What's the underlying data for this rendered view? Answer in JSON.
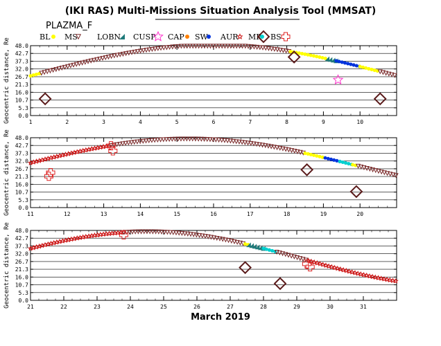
{
  "title": "(IKI RAS) Multi-Missions Situation Analysis Tool (MMSAT)",
  "subtitle": "PLAZMA_F",
  "xlabel": "March 2019",
  "legend": [
    {
      "key": "BL",
      "label": "BL",
      "symbol": "dot",
      "color": "#ffff00"
    },
    {
      "key": "MS",
      "label": "MS",
      "symbol": "tri-down",
      "color": "#7a2a2a"
    },
    {
      "key": "LOBN",
      "label": "LOBN",
      "symbol": "tri-right",
      "color": "#1f7a7a"
    },
    {
      "key": "CUSP",
      "label": "CUSP",
      "symbol": "star",
      "color": "#ff33cc"
    },
    {
      "key": "CAP",
      "label": "CAP",
      "symbol": "dot",
      "color": "#ff8000"
    },
    {
      "key": "SW",
      "label": "SW",
      "symbol": "dot",
      "color": "#0033dd"
    },
    {
      "key": "AUR",
      "label": "AUR",
      "symbol": "star-small",
      "color": "#cc1111"
    },
    {
      "key": "MP",
      "label": "MP",
      "symbol": "dot",
      "color": "#00d0d0"
    },
    {
      "key": "BS",
      "label": "BS",
      "symbol": "diamond",
      "color": "#5a1a1a"
    },
    {
      "key": "OUT",
      "label": "",
      "symbol": "cross",
      "color": "#dd2222"
    }
  ],
  "chart_data": [
    {
      "type": "scatter",
      "ylabel": "Geocentric distance, Re",
      "xlim": [
        1,
        11
      ],
      "ylim": [
        0,
        48
      ],
      "yticks": [
        "0.0",
        "5.3",
        "10.7",
        "16.0",
        "21.3",
        "26.7",
        "32.0",
        "37.3",
        "42.7",
        "48.0"
      ],
      "xticks": [
        "1",
        "2",
        "3",
        "4",
        "5",
        "6",
        "7",
        "8",
        "9",
        "10"
      ],
      "grid": true,
      "orbit": {
        "kind": "sine",
        "center": 29.5,
        "amplitude": 19,
        "period": 18.6,
        "phase_peak": 6.0
      },
      "segments": [
        {
          "region": "BL",
          "from": 1.0,
          "to": 1.3
        },
        {
          "region": "MS",
          "from": 1.3,
          "to": 8.1
        },
        {
          "region": "BL",
          "from": 8.1,
          "to": 9.1
        },
        {
          "region": "LOBN",
          "from": 9.1,
          "to": 9.35
        },
        {
          "region": "SW",
          "from": 9.35,
          "to": 10.0
        },
        {
          "region": "BL",
          "from": 10.0,
          "to": 10.55
        },
        {
          "region": "MS",
          "from": 10.55,
          "to": 11.0
        }
      ],
      "markers": [
        {
          "region": "BS",
          "x": 1.4,
          "y": 11.5
        },
        {
          "region": "BS",
          "x": 8.2,
          "y": 40.2
        },
        {
          "region": "CUSP",
          "x": 9.4,
          "y": 24.5
        },
        {
          "region": "BS",
          "x": 10.55,
          "y": 11.5
        }
      ]
    },
    {
      "type": "scatter",
      "ylabel": "Geocentric distance, Re",
      "xlim": [
        11,
        21
      ],
      "ylim": [
        0,
        48
      ],
      "yticks": [
        "0.0",
        "5.3",
        "10.7",
        "16.0",
        "21.3",
        "26.7",
        "32.0",
        "37.3",
        "42.7",
        "48.0"
      ],
      "xticks": [
        "11",
        "12",
        "13",
        "14",
        "15",
        "16",
        "17",
        "18",
        "19",
        "20"
      ],
      "grid": true,
      "orbit": {
        "kind": "sine",
        "center": 28.5,
        "amplitude": 18.7,
        "period": 18.6,
        "phase_peak": 15.3
      },
      "segments": [
        {
          "region": "AUR",
          "from": 11.0,
          "to": 13.2
        },
        {
          "region": "MS",
          "from": 13.2,
          "to": 18.5
        },
        {
          "region": "BL",
          "from": 18.5,
          "to": 19.05
        },
        {
          "region": "SW",
          "from": 19.05,
          "to": 19.45
        },
        {
          "region": "MP",
          "from": 19.45,
          "to": 19.8
        },
        {
          "region": "BL",
          "from": 19.8,
          "to": 19.95
        },
        {
          "region": "MS",
          "from": 19.95,
          "to": 21.0
        }
      ],
      "markers": [
        {
          "region": "OUT",
          "x": 11.5,
          "y": 21.5
        },
        {
          "region": "OUT",
          "x": 11.55,
          "y": 24.0
        },
        {
          "region": "OUT",
          "x": 13.2,
          "y": 42.5
        },
        {
          "region": "OUT",
          "x": 13.25,
          "y": 39.0
        },
        {
          "region": "BS",
          "x": 18.55,
          "y": 26.0
        },
        {
          "region": "BS",
          "x": 19.9,
          "y": 11.0
        }
      ]
    },
    {
      "type": "scatter",
      "ylabel": "Geocentric distance, Re",
      "xlim": [
        21,
        32
      ],
      "ylim": [
        0,
        48
      ],
      "yticks": [
        "0.0",
        "5.3",
        "10.7",
        "16.0",
        "21.3",
        "26.7",
        "32.0",
        "37.3",
        "42.7",
        "48.0"
      ],
      "xticks": [
        "21",
        "22",
        "23",
        "24",
        "25",
        "26",
        "27",
        "28",
        "29",
        "30",
        "31"
      ],
      "grid": true,
      "orbit": {
        "kind": "sine",
        "center": 28.5,
        "amplitude": 18.7,
        "period": 18.6,
        "phase_peak": 24.5
      },
      "segments": [
        {
          "region": "AUR",
          "from": 21.0,
          "to": 23.8
        },
        {
          "region": "MS",
          "from": 23.8,
          "to": 27.45
        },
        {
          "region": "BL",
          "from": 27.45,
          "to": 27.55
        },
        {
          "region": "LOBN",
          "from": 27.55,
          "to": 28.0
        },
        {
          "region": "MP",
          "from": 28.0,
          "to": 28.4
        },
        {
          "region": "MS",
          "from": 28.4,
          "to": 29.35
        },
        {
          "region": "AUR",
          "from": 29.35,
          "to": 32.0
        }
      ],
      "markers": [
        {
          "region": "OUT",
          "x": 23.8,
          "y": 45.0
        },
        {
          "region": "BS",
          "x": 27.45,
          "y": 22.5
        },
        {
          "region": "BS",
          "x": 28.5,
          "y": 11.5
        },
        {
          "region": "OUT",
          "x": 29.3,
          "y": 25.0
        },
        {
          "region": "OUT",
          "x": 29.4,
          "y": 23.0
        }
      ]
    }
  ]
}
